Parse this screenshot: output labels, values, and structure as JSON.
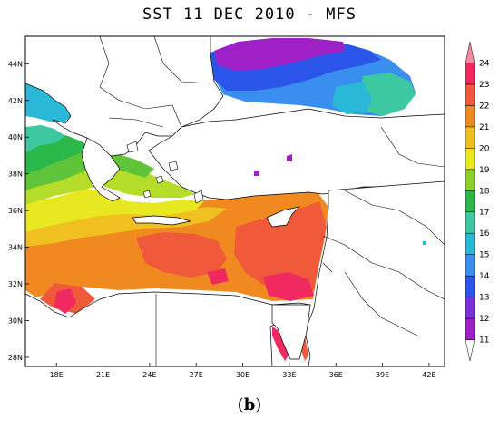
{
  "title": "SST 11 DEC 2010 - MFS",
  "caption": {
    "open": "(",
    "letter": "b",
    "close": ")"
  },
  "map": {
    "lon_range": [
      16,
      43
    ],
    "lat_range": [
      27.5,
      45.5
    ],
    "x_ticks": [
      "18E",
      "21E",
      "24E",
      "27E",
      "30E",
      "33E",
      "36E",
      "39E",
      "42E"
    ],
    "x_tick_values": [
      18,
      21,
      24,
      27,
      30,
      33,
      36,
      39,
      42
    ],
    "y_ticks": [
      "28N",
      "30N",
      "32N",
      "34N",
      "36N",
      "38N",
      "40N",
      "42N",
      "44N"
    ],
    "y_tick_values": [
      28,
      30,
      32,
      34,
      36,
      38,
      40,
      42,
      44
    ]
  },
  "colorbar": {
    "labels": [
      "11",
      "12",
      "13",
      "14",
      "15",
      "16",
      "17",
      "18",
      "19",
      "20",
      "21",
      "22",
      "23",
      "24"
    ],
    "colors": [
      "#ffffff",
      "#a020c8",
      "#7a2fd8",
      "#2a55e8",
      "#3a8ef0",
      "#29b8d8",
      "#3cc8a0",
      "#2ab84a",
      "#8cd02a",
      "#e8e820",
      "#f0c020",
      "#f08a20",
      "#f05a3a",
      "#f02a60",
      "#f88aa0"
    ]
  },
  "sst_colors": {
    "land": "#ffffff",
    "c12": "#a020c8",
    "c13": "#2a55e8",
    "c14": "#3a8ef0",
    "c15": "#29b8d8",
    "c16": "#3cc8a0",
    "c17": "#2ab84a",
    "c18": "#5fc43a",
    "c19": "#b4dc28",
    "c20": "#e8e820",
    "c21": "#f0c020",
    "c22": "#f08a20",
    "c23": "#f05a3a",
    "c24": "#f02a60"
  }
}
